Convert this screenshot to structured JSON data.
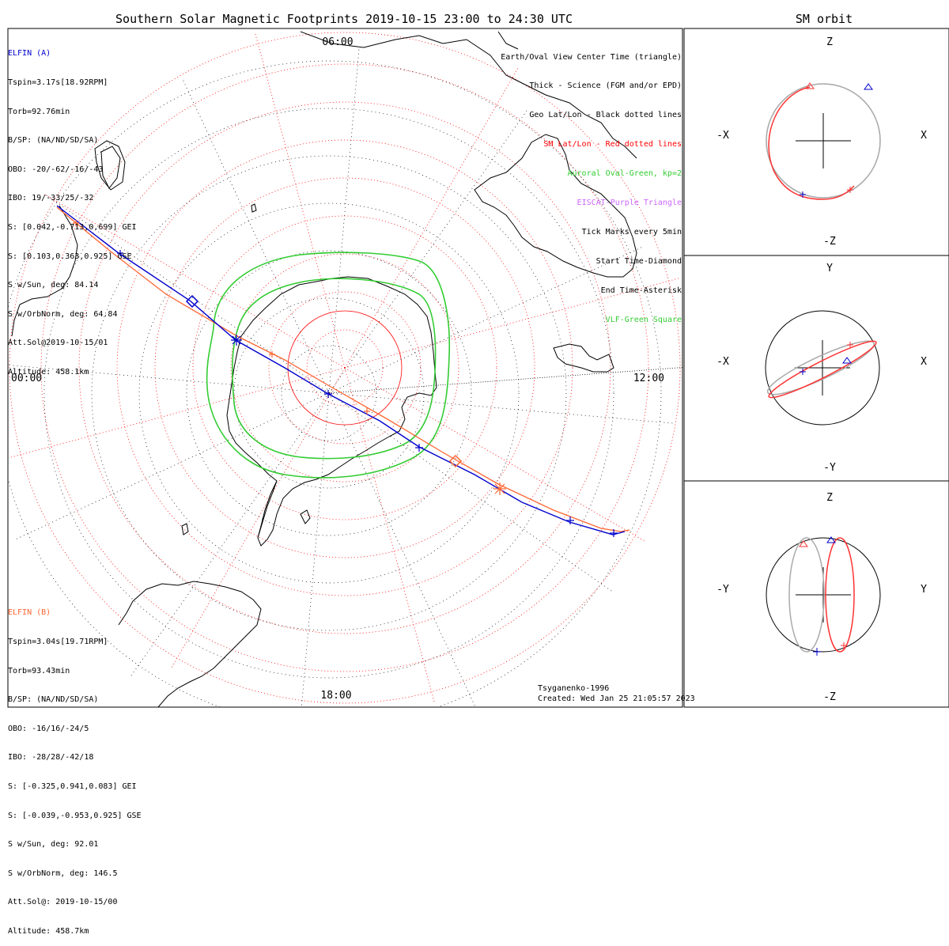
{
  "title": "Southern Solar Magnetic Footprints 2019-10-15 23:00 to 24:30 UTC",
  "right_title": "SM orbit",
  "time_labels": {
    "top": "06:00",
    "left": "00:00",
    "right": "12:00",
    "bottom": "18:00"
  },
  "elfin_a": {
    "name": "ELFIN (A)",
    "lines": [
      "Tspin=3.17s[18.92RPM]",
      "Torb=92.76min",
      "B/SP: (NA/ND/SD/SA)",
      "OBO: -20/-62/-16/-43",
      "IBO: 19/-33/25/-32",
      "S: [0.042,-0.713,0.699] GEI",
      "S: [0.103,0.363,0.925] GSE",
      "S w/Sun, deg: 84.14",
      "S w/OrbNorm, deg: 64.84",
      "Att.Sol@2019-10-15/01",
      "Altitude: 458.1km"
    ],
    "color": "#0000cc"
  },
  "elfin_b": {
    "name": "ELFIN (B)",
    "lines": [
      "Tspin=3.04s[19.71RPM]",
      "Torb=93.43min",
      "B/SP: (NA/ND/SD/SA)",
      "OBO: -16/16/-24/5",
      "IBO: -28/28/-42/18",
      "S: [-0.325,0.941,0.083] GEI",
      "S: [-0.039,-0.953,0.925] GSE",
      "S w/Sun, deg: 92.01",
      "S w/OrbNorm, deg: 146.5",
      "Att.Sol@: 2019-10-15/00",
      "Altitude: 458.7km"
    ],
    "color": "#ff6633"
  },
  "legend": [
    {
      "text": "Earth/Oval View Center Time (triangle)",
      "color": "#000000"
    },
    {
      "text": "Thick - Science (FGM and/or EPD)",
      "color": "#000000"
    },
    {
      "text": "Geo Lat/Lon - Black dotted lines",
      "color": "#000000"
    },
    {
      "text": "SM Lat/Lon - Red dotted lines",
      "color": "#ff0000"
    },
    {
      "text": "Auroral Oval-Green, kp=2",
      "color": "#33cc33"
    },
    {
      "text": "EISCAT-Purple Triangle",
      "color": "#cc66ff"
    },
    {
      "text": "Tick Marks every 5min",
      "color": "#000000"
    },
    {
      "text": "Start Time-Diamond",
      "color": "#000000"
    },
    {
      "text": "End Time-Asterisk",
      "color": "#000000"
    },
    {
      "text": "VLF-Green Square",
      "color": "#33cc33"
    }
  ],
  "credits": {
    "model": "Tsyganenko-1996",
    "created": "Created: Wed Jan 25 21:05:57 2023"
  },
  "orbit_panels": [
    {
      "top": "Z",
      "bottom": "-Z",
      "left": "-X",
      "right": "X"
    },
    {
      "top": "Y",
      "bottom": "-Y",
      "left": "-X",
      "right": "X"
    },
    {
      "top": "Z",
      "bottom": "-Z",
      "left": "-Y",
      "right": "Y"
    }
  ],
  "colors": {
    "elfin_a": "#0000cc",
    "elfin_b": "#ff6633",
    "oval": "#33cc33",
    "sm_grid": "#ff0000",
    "coast": "#000000",
    "orbit_gray": "#aaaaaa"
  }
}
